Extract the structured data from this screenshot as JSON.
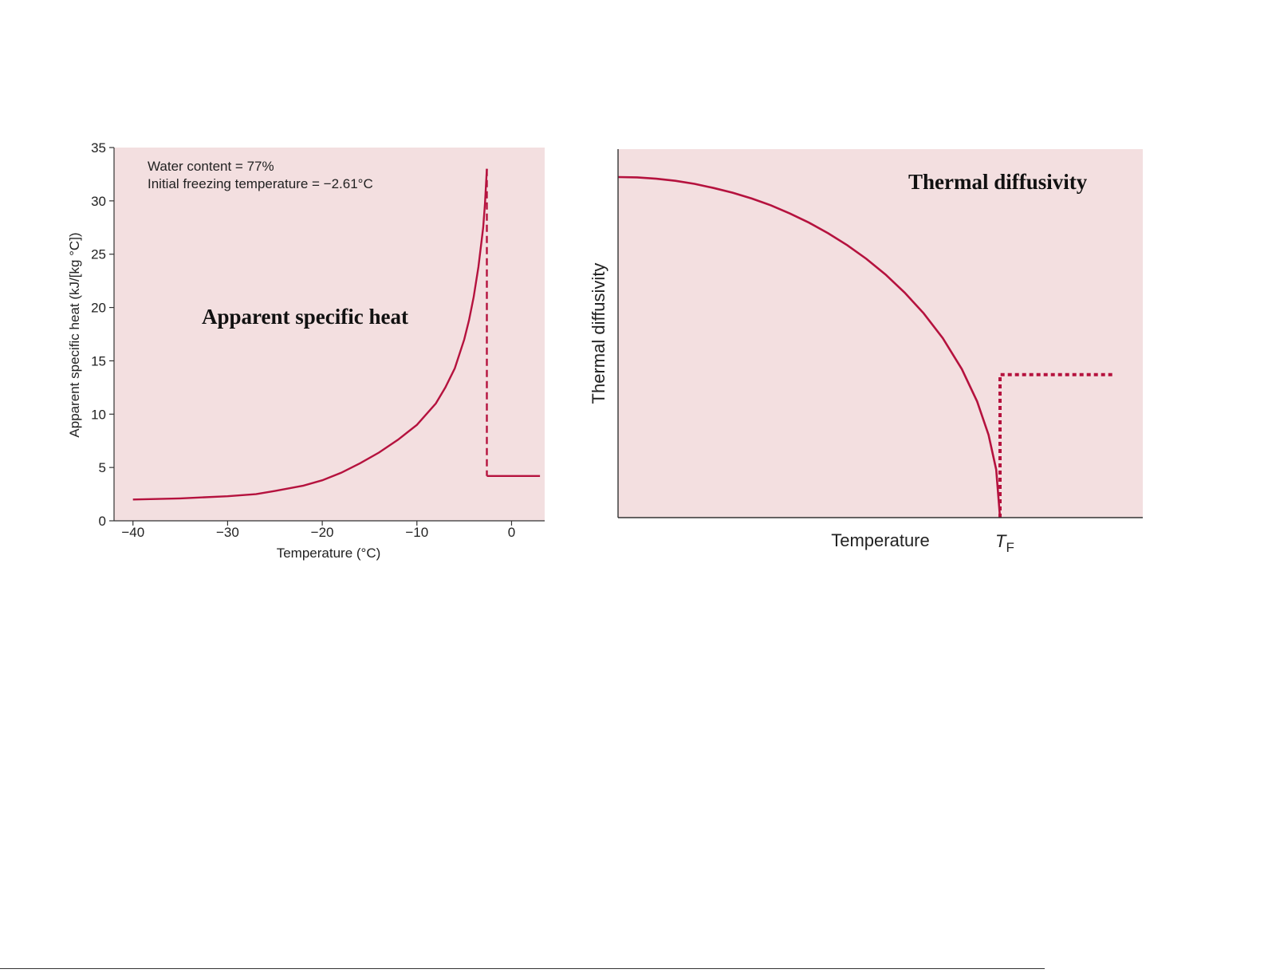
{
  "colors": {
    "plot_background": "#f3dfe0",
    "curve": "#b5123e",
    "axis": "#333333"
  },
  "chart_data": [
    {
      "type": "line",
      "title": "Apparent specific heat",
      "xlabel": "Temperature (°C)",
      "ylabel": "Apparent specific heat (kJ/[kg °C])",
      "xlim": [
        -42,
        3.5
      ],
      "ylim": [
        0,
        35
      ],
      "x_ticks": [
        -40,
        -30,
        -20,
        -10,
        0
      ],
      "x_tick_labels": [
        "−40",
        "−30",
        "−20",
        "−10",
        "0"
      ],
      "y_ticks": [
        0,
        5,
        10,
        15,
        20,
        25,
        30,
        35
      ],
      "y_tick_labels": [
        "0",
        "5",
        "10",
        "15",
        "20",
        "25",
        "30",
        "35"
      ],
      "annotations": [
        "Water content = 77%",
        "Initial freezing temperature = −2.61°C"
      ],
      "grid": false,
      "series": [
        {
          "style": "solid",
          "x": [
            -40,
            -35,
            -30,
            -27,
            -25,
            -22,
            -20,
            -18,
            -16,
            -14,
            -12,
            -10,
            -8,
            -7,
            -6,
            -5,
            -4.5,
            -4,
            -3.5,
            -3,
            -2.8,
            -2.61
          ],
          "y": [
            2.0,
            2.1,
            2.3,
            2.5,
            2.8,
            3.3,
            3.8,
            4.5,
            5.4,
            6.4,
            7.6,
            9.0,
            11.0,
            12.5,
            14.3,
            17.0,
            18.8,
            21.0,
            23.8,
            27.5,
            29.8,
            33.0
          ]
        },
        {
          "style": "dashed",
          "x": [
            -2.61,
            -2.61
          ],
          "y": [
            33.0,
            4.2
          ]
        },
        {
          "style": "solid",
          "x": [
            -2.61,
            3.0
          ],
          "y": [
            4.2,
            4.2
          ]
        }
      ]
    },
    {
      "type": "line",
      "title": "Thermal diffusivity",
      "xlabel": "Temperature",
      "ylabel": "Thermal diffusivity",
      "x_marker_label": {
        "main": "T",
        "sub": "F"
      },
      "grid": false,
      "series": [
        {
          "style": "solid",
          "x": [
            0.0,
            0.05,
            0.1,
            0.15,
            0.2,
            0.25,
            0.3,
            0.35,
            0.4,
            0.45,
            0.5,
            0.55,
            0.6,
            0.65,
            0.7,
            0.75,
            0.8,
            0.85,
            0.9,
            0.94,
            0.97,
            0.99,
            1.0
          ],
          "y": [
            1.0,
            0.999,
            0.995,
            0.989,
            0.98,
            0.968,
            0.954,
            0.937,
            0.917,
            0.893,
            0.866,
            0.835,
            0.8,
            0.76,
            0.714,
            0.661,
            0.6,
            0.527,
            0.436,
            0.341,
            0.243,
            0.141,
            0.0
          ]
        },
        {
          "style": "dotted",
          "x": [
            1.0,
            1.0,
            1.3
          ],
          "y": [
            0.0,
            0.42,
            0.42
          ]
        }
      ]
    }
  ]
}
